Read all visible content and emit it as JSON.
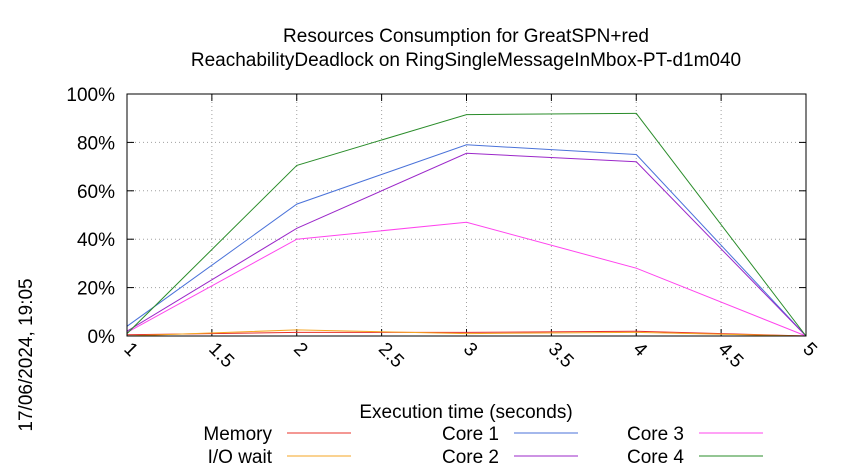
{
  "chart_data": {
    "type": "line",
    "title_line1": "Resources Consumption for GreatSPN+red",
    "title_line2": "ReachabilityDeadlock on RingSingleMessageInMbox-PT-d1m040",
    "xlabel": "Execution time (seconds)",
    "ylabel": "",
    "side_label": "17/06/2024, 19:05",
    "xlim": [
      1,
      5
    ],
    "ylim": [
      0,
      100
    ],
    "x_ticks": [
      "1",
      "1.5",
      "2",
      "2.5",
      "3",
      "3.5",
      "4",
      "4.5",
      "5"
    ],
    "y_ticks": [
      "0%",
      "20%",
      "40%",
      "60%",
      "80%",
      "100%"
    ],
    "grid": true,
    "legend_position": "bottom",
    "x": [
      1,
      2,
      3,
      4,
      5
    ],
    "series": [
      {
        "name": "Memory",
        "color": "#e8302a",
        "values": [
          0.5,
          1.5,
          1.5,
          2,
          0
        ]
      },
      {
        "name": "I/O wait",
        "color": "#f5a623",
        "values": [
          0,
          2.5,
          1,
          1.5,
          0
        ]
      },
      {
        "name": "Core 1",
        "color": "#4a72d9",
        "values": [
          4,
          54.5,
          79,
          75,
          0
        ]
      },
      {
        "name": "Core 2",
        "color": "#9b27c9",
        "values": [
          2,
          44.5,
          75.5,
          72,
          0
        ]
      },
      {
        "name": "Core 3",
        "color": "#ff44ee",
        "values": [
          1.5,
          40,
          47,
          28,
          0
        ]
      },
      {
        "name": "Core 4",
        "color": "#2a8c2a",
        "values": [
          1,
          70.5,
          91.5,
          92,
          0
        ]
      }
    ]
  }
}
